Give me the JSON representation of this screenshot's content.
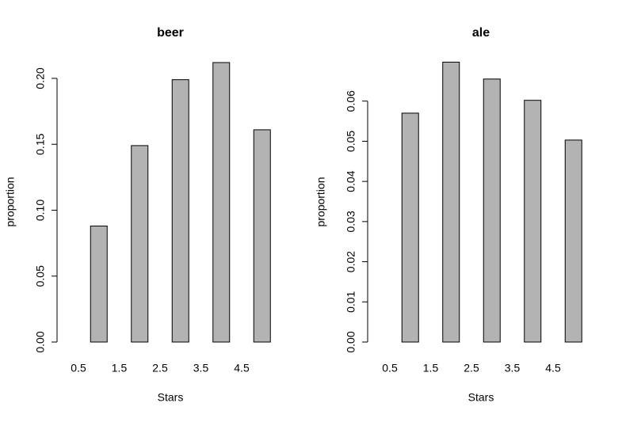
{
  "chart_data": [
    {
      "type": "bar",
      "title": "beer",
      "x_label": "Stars",
      "y_label": "proportion",
      "categories": [
        "0.5",
        null,
        "1.5",
        null,
        "2.5",
        null,
        "3.5",
        null,
        "4.5",
        null
      ],
      "values": [
        0,
        0.088,
        null,
        0.149,
        null,
        0.199,
        null,
        0.212,
        null,
        0.161
      ],
      "color": "#b3b3b3",
      "ylim": [
        0,
        0.2126
      ],
      "yticks": [
        {
          "value": 0,
          "label": "0.00"
        },
        {
          "value": 0.05,
          "label": "0.05"
        },
        {
          "value": 0.1,
          "label": "0.10"
        },
        {
          "value": 0.15,
          "label": "0.15"
        },
        {
          "value": 0.2,
          "label": "0.20"
        }
      ]
    },
    {
      "type": "bar",
      "title": "ale",
      "x_label": "Stars",
      "y_label": "proportion",
      "categories": [
        "0.5",
        null,
        "1.5",
        null,
        "2.5",
        null,
        "3.5",
        null,
        "4.5",
        null
      ],
      "values": [
        0,
        0.057,
        null,
        0.0697,
        null,
        0.0655,
        null,
        0.0602,
        null,
        0.0503
      ],
      "color": "#b3b3b3",
      "ylim": [
        0,
        0.0698
      ],
      "yticks": [
        {
          "value": 0,
          "label": "0.00"
        },
        {
          "value": 0.01,
          "label": "0.01"
        },
        {
          "value": 0.02,
          "label": "0.02"
        },
        {
          "value": 0.03,
          "label": "0.03"
        },
        {
          "value": 0.04,
          "label": "0.04"
        },
        {
          "value": 0.05,
          "label": "0.05"
        },
        {
          "value": 0.06,
          "label": "0.06"
        }
      ]
    }
  ]
}
